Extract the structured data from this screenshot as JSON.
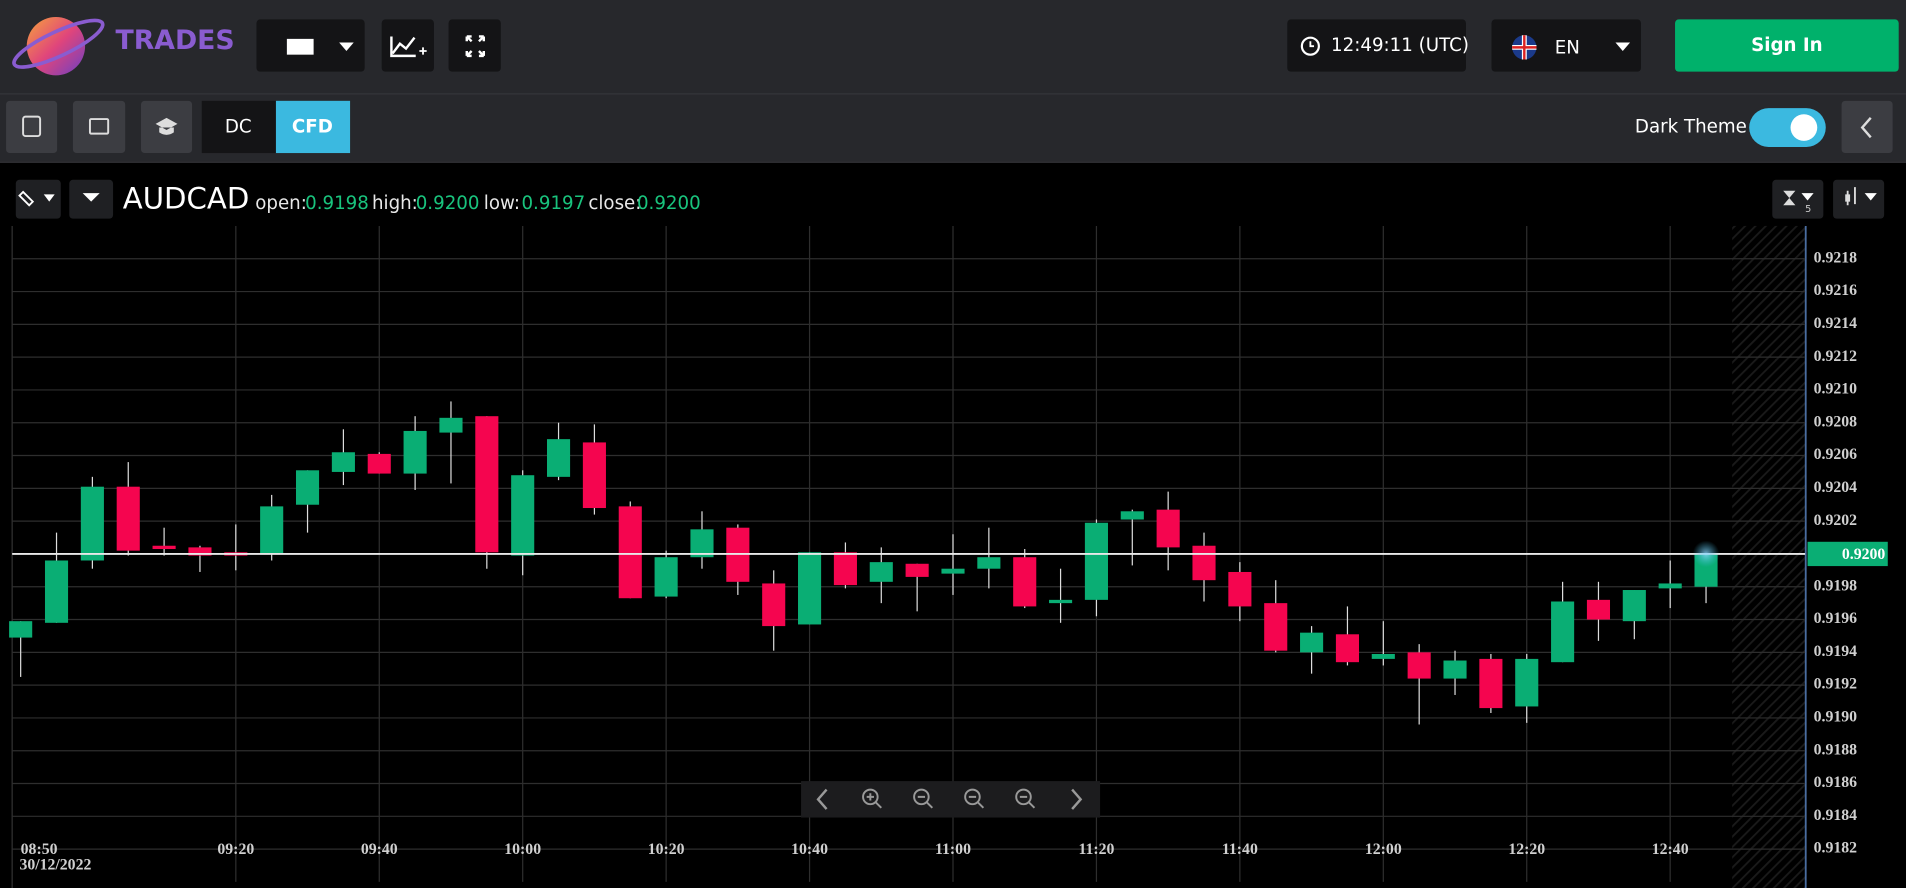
{
  "header": {
    "brand": "TRADES",
    "clock": "12:49:11 (UTC)",
    "language": "EN",
    "sign_in": "Sign In"
  },
  "toolbar": {
    "dc": "DC",
    "cfd": "CFD",
    "dark_theme": "Dark Theme"
  },
  "quote": {
    "symbol": "AUDCAD",
    "open_label": "open:",
    "open": "0.9198",
    "high_label": "high:",
    "high": "0.9200",
    "low_label": "low:",
    "low": "0.9197",
    "close_label": "close:",
    "close": "0.9200",
    "interval": "5"
  },
  "chart_data": {
    "type": "candlestick",
    "categories": [
      "08:50",
      null,
      null,
      null,
      null,
      null,
      "09:20",
      null,
      null,
      null,
      "09:40",
      null,
      null,
      null,
      "10:00",
      null,
      null,
      null,
      "10:20",
      null,
      null,
      null,
      "10:40",
      null,
      null,
      null,
      "11:00",
      null,
      null,
      null,
      "11:20",
      null,
      null,
      null,
      "11:40",
      null,
      null,
      null,
      "12:00",
      null,
      null,
      null,
      "12:20",
      null,
      null,
      null,
      "12:40",
      null
    ],
    "date_label": "30/12/2022",
    "open": [
      0.91949,
      0.91958,
      0.91996,
      0.92041,
      0.92005,
      0.92004,
      0.92001,
      0.92,
      0.9203,
      0.9205,
      0.92061,
      0.92049,
      0.92074,
      0.92084,
      0.91999,
      0.92047,
      0.92068,
      0.92029,
      0.91974,
      0.91998,
      0.92016,
      0.91982,
      0.91957,
      0.92001,
      0.91983,
      0.91994,
      0.91988,
      0.91991,
      0.91998,
      0.9197,
      0.91972,
      0.92021,
      0.92027,
      0.92005,
      0.91989,
      0.9197,
      0.9194,
      0.91951,
      0.91936,
      0.9194,
      0.91924,
      0.91936,
      0.91907,
      0.91934,
      0.91972,
      0.91959,
      0.91979,
      0.9198
    ],
    "high": [
      0.91959,
      0.92013,
      0.92047,
      0.92056,
      0.92016,
      0.92005,
      0.92018,
      0.92036,
      0.92051,
      0.92076,
      0.92062,
      0.92084,
      0.92093,
      0.92084,
      0.92051,
      0.9208,
      0.92079,
      0.92032,
      0.92002,
      0.92026,
      0.92018,
      0.9199,
      0.92001,
      0.92007,
      0.92004,
      0.91994,
      0.92012,
      0.92016,
      0.92003,
      0.91991,
      0.92021,
      0.92027,
      0.92038,
      0.92013,
      0.91995,
      0.91984,
      0.91956,
      0.91968,
      0.91959,
      0.91945,
      0.91941,
      0.91939,
      0.91939,
      0.91983,
      0.91983,
      0.91978,
      0.91996,
      0.92
    ],
    "low": [
      0.91925,
      0.91958,
      0.91991,
      0.91999,
      0.91999,
      0.91989,
      0.9199,
      0.91996,
      0.92013,
      0.92042,
      0.92049,
      0.92039,
      0.92043,
      0.91991,
      0.91987,
      0.92045,
      0.92024,
      0.91973,
      0.91973,
      0.91991,
      0.91975,
      0.91941,
      0.91957,
      0.91979,
      0.9197,
      0.91965,
      0.91975,
      0.91979,
      0.91967,
      0.91958,
      0.91962,
      0.91993,
      0.9199,
      0.91971,
      0.91959,
      0.9194,
      0.91927,
      0.91932,
      0.91932,
      0.91896,
      0.91914,
      0.91903,
      0.91897,
      0.91934,
      0.91947,
      0.91948,
      0.91967,
      0.9197
    ],
    "close": [
      0.91959,
      0.91996,
      0.92041,
      0.92002,
      0.92003,
      0.91999,
      0.91999,
      0.92029,
      0.92051,
      0.92062,
      0.92049,
      0.92075,
      0.92083,
      0.92001,
      0.92048,
      0.9207,
      0.92028,
      0.91973,
      0.91998,
      0.92015,
      0.91983,
      0.91956,
      0.92001,
      0.91981,
      0.91995,
      0.91986,
      0.91991,
      0.91998,
      0.91968,
      0.91972,
      0.92019,
      0.92026,
      0.92004,
      0.91984,
      0.91968,
      0.91941,
      0.91952,
      0.91934,
      0.91939,
      0.91924,
      0.91935,
      0.91906,
      0.91936,
      0.91971,
      0.9196,
      0.91978,
      0.91982,
      0.92
    ],
    "up_color": "#0aae74",
    "down_color": "#f5054f",
    "ylim": [
      0.918,
      0.922
    ],
    "yticks": [
      0.9182,
      0.9184,
      0.9186,
      0.9188,
      {
        "value": 0.919,
        "label": "0.9190"
      },
      0.9192,
      0.9194,
      0.9196,
      0.9198,
      {
        "value": 0.92,
        "label": "0.9200"
      },
      0.9202,
      0.9204,
      0.9206,
      0.9208,
      {
        "value": 0.921,
        "label": "0.9210"
      },
      0.9212,
      0.9214,
      0.9216,
      0.9218
    ],
    "last_price": {
      "value": 0.92,
      "label": "0.9200"
    },
    "grid": true
  }
}
